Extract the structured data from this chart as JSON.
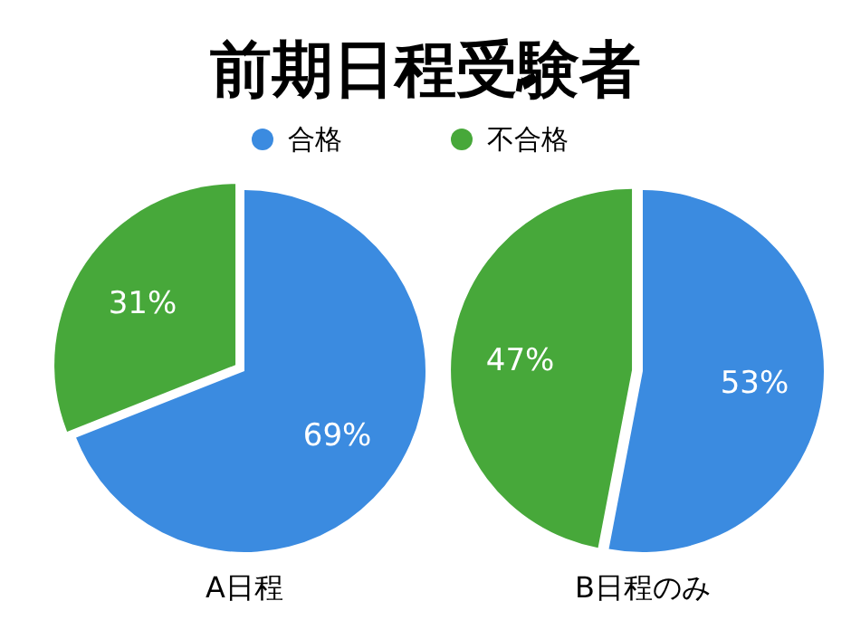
{
  "chart_data": [
    {
      "type": "pie",
      "title": "前期日程受験者",
      "xlabel": "A日程",
      "categories": [
        "合格",
        "不合格"
      ],
      "values": [
        69,
        31
      ],
      "colors": [
        "#3b8be0",
        "#47a83a"
      ],
      "value_labels": [
        "69%",
        "31%"
      ],
      "legend": "top"
    },
    {
      "type": "pie",
      "xlabel": "B日程のみ",
      "categories": [
        null,
        null
      ],
      "values": [
        53,
        47
      ],
      "colors": [
        "#3b8be0",
        "#47a83a"
      ],
      "value_labels": [
        "53%",
        "47%"
      ]
    }
  ]
}
